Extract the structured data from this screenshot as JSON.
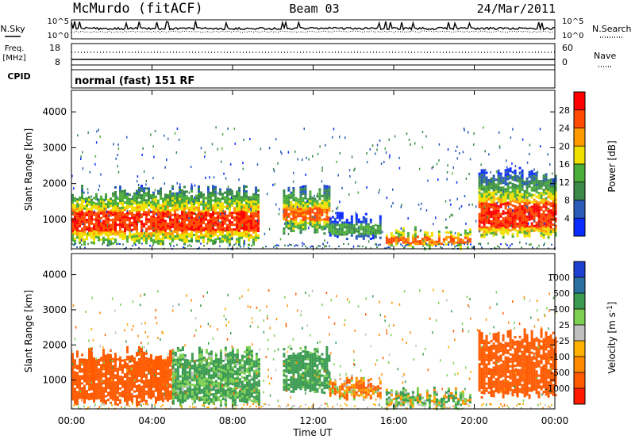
{
  "header": {
    "station": "McMurdo (fitACF)",
    "beam": "Beam 03",
    "date": "24/Mar/2011"
  },
  "sky_panel": {
    "left_label": "N.Sky",
    "right_label": "N.Search",
    "left_ticks": [
      "10^5",
      "10^0"
    ],
    "right_ticks": [
      "10^5",
      "10^0"
    ]
  },
  "freq_panel": {
    "left_label_1": "Freq.",
    "left_label_2": "[MHz]",
    "right_label": "Nave",
    "left_ticks": [
      "18",
      "8"
    ],
    "right_ticks": [
      "60",
      "0"
    ]
  },
  "cpid": {
    "label": "CPID",
    "program": "normal (fast) 151 RF"
  },
  "x_axis": {
    "label": "Time UT",
    "ticks": [
      "00:00",
      "04:00",
      "08:00",
      "12:00",
      "16:00",
      "20:00",
      "00:00"
    ]
  },
  "colors": {
    "power": [
      "#0a2cff",
      "#2a5bb8",
      "#3b8a4a",
      "#4cae3a",
      "#f0e000",
      "#ff9a00",
      "#ff4a00",
      "#ff0000"
    ],
    "velocity": [
      "#ff1a00",
      "#ff5a00",
      "#ff8a00",
      "#ffb000",
      "#bfbfbf",
      "#7ccf50",
      "#3a9a50",
      "#2a70a0",
      "#1c3fd0"
    ]
  },
  "chart_data": [
    {
      "type": "heatmap",
      "title": "",
      "xlabel": "Time UT",
      "ylabel": "Slant Range [km]",
      "xlim": [
        "00:00",
        "24:00"
      ],
      "ylim": [
        180,
        4600
      ],
      "y_ticks": [
        "1000",
        "2000",
        "3000",
        "4000"
      ],
      "colorbar": {
        "label": "Power [dB]",
        "ticks": [
          "28",
          "24",
          "20",
          "16",
          "12",
          "8",
          "4"
        ],
        "range": [
          0,
          30
        ]
      },
      "echo_regions": [
        {
          "start_ut": 0.0,
          "end_ut": 9.3,
          "range_km": [
            400,
            1850
          ],
          "core_range_km": [
            700,
            1250
          ],
          "core_power_db": 28
        },
        {
          "start_ut": 10.5,
          "end_ut": 12.8,
          "range_km": [
            700,
            1850
          ],
          "core_range_km": [
            1000,
            1350
          ],
          "core_power_db": 26
        },
        {
          "start_ut": 12.8,
          "end_ut": 15.4,
          "range_km": [
            550,
            1100
          ],
          "core_range_km": [
            600,
            900
          ],
          "core_power_db": 14
        },
        {
          "start_ut": 15.6,
          "end_ut": 19.8,
          "range_km": [
            300,
            700
          ],
          "core_range_km": [
            350,
            550
          ],
          "core_power_db": 26
        },
        {
          "start_ut": 20.2,
          "end_ut": 24.0,
          "range_km": [
            600,
            2350
          ],
          "core_range_km": [
            800,
            1500
          ],
          "core_power_db": 28
        }
      ]
    },
    {
      "type": "heatmap",
      "title": "",
      "xlabel": "Time UT",
      "ylabel": "Slant Range [km]",
      "xlim": [
        "00:00",
        "24:00"
      ],
      "ylim": [
        180,
        4600
      ],
      "y_ticks": [
        "1000",
        "2000",
        "3000",
        "4000"
      ],
      "colorbar": {
        "label": "Velocity [m s-1]",
        "ticks": [
          "1000",
          "500",
          "100",
          "25",
          "-25",
          "-100",
          "-500",
          "-1000"
        ],
        "range": [
          -1000,
          1000
        ]
      },
      "echo_regions": [
        {
          "start_ut": 0.0,
          "end_ut": 5.0,
          "range_km": [
            400,
            1850
          ],
          "velocity_ms": -300
        },
        {
          "start_ut": 5.0,
          "end_ut": 9.3,
          "range_km": [
            400,
            1850
          ],
          "velocity_ms": 150
        },
        {
          "start_ut": 10.5,
          "end_ut": 12.8,
          "range_km": [
            700,
            1850
          ],
          "velocity_ms": 200
        },
        {
          "start_ut": 12.8,
          "end_ut": 15.4,
          "range_km": [
            550,
            1100
          ],
          "velocity_ms": -80
        },
        {
          "start_ut": 15.6,
          "end_ut": 19.8,
          "range_km": [
            300,
            700
          ],
          "velocity_ms": 60
        },
        {
          "start_ut": 20.2,
          "end_ut": 24.0,
          "range_km": [
            600,
            2350
          ],
          "velocity_ms": -350
        }
      ]
    }
  ]
}
